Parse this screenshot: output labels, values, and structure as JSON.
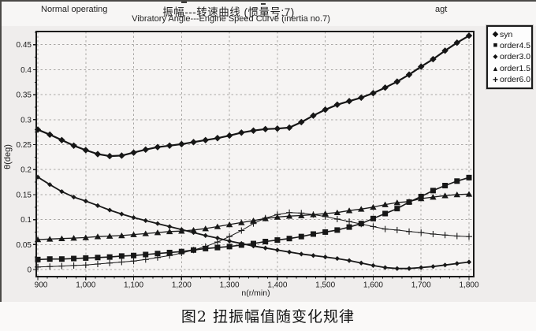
{
  "header": {
    "left_label": "Normal operating",
    "title_cn": "振幅---转速曲线 (惯量号:7)",
    "subtitle_en": "Vibratory Angle---Engine Speed Curve (inertia no.7)",
    "right_label": "agt"
  },
  "caption": "图2 扭振幅值随变化规律",
  "chart_data": {
    "type": "line",
    "title": "振幅---转速曲线 (惯量号:7)",
    "subtitle": "Vibratory Angle---Engine Speed Curve (inertia no.7)",
    "xlabel": "n(r/min)",
    "ylabel": "θ(deg)",
    "xlim": [
      900,
      1810
    ],
    "ylim": [
      -0.015,
      0.477
    ],
    "grid": "dashed",
    "grid_color": "#a9a7a5",
    "axis_color": "#1a1a1a",
    "plot_bg": "#f6f4f3",
    "legend_position": "right",
    "x_ticks": [
      900,
      1000,
      1100,
      1200,
      1300,
      1400,
      1500,
      1600,
      1700,
      1800
    ],
    "x_tick_labels": [
      "900",
      "1,000",
      "1,100",
      "1,200",
      "1,300",
      "1,400",
      "1,500",
      "1,600",
      "1,700",
      "1,800"
    ],
    "y_ticks": [
      0,
      0.05,
      0.1,
      0.15,
      0.2,
      0.25,
      0.3,
      0.35,
      0.4,
      0.45
    ],
    "y_tick_labels": [
      "0",
      "0.05",
      "0.1",
      "0.15",
      "0.2",
      "0.25",
      "0.3",
      "0.35",
      "0.4",
      "0.45"
    ],
    "x": [
      900,
      925,
      950,
      975,
      1000,
      1025,
      1050,
      1075,
      1100,
      1125,
      1150,
      1175,
      1200,
      1225,
      1250,
      1275,
      1300,
      1325,
      1350,
      1375,
      1400,
      1425,
      1450,
      1475,
      1500,
      1525,
      1550,
      1575,
      1600,
      1625,
      1650,
      1675,
      1700,
      1725,
      1750,
      1775,
      1800
    ],
    "series": [
      {
        "name": "syn",
        "legend_glyph": "◆",
        "marker": "diamond",
        "marker_size": 4.2,
        "line_width": 2.2,
        "color": "#161616",
        "values": [
          0.28,
          0.27,
          0.259,
          0.248,
          0.239,
          0.231,
          0.227,
          0.228,
          0.234,
          0.24,
          0.245,
          0.248,
          0.251,
          0.255,
          0.259,
          0.263,
          0.268,
          0.274,
          0.278,
          0.281,
          0.282,
          0.284,
          0.295,
          0.308,
          0.32,
          0.33,
          0.337,
          0.344,
          0.353,
          0.364,
          0.376,
          0.39,
          0.406,
          0.421,
          0.438,
          0.454,
          0.468
        ]
      },
      {
        "name": "order4.5",
        "legend_glyph": "■",
        "marker": "square",
        "marker_size": 3.5,
        "line_width": 1.6,
        "color": "#171717",
        "values": [
          0.02,
          0.021,
          0.021,
          0.022,
          0.023,
          0.024,
          0.025,
          0.027,
          0.028,
          0.03,
          0.032,
          0.034,
          0.036,
          0.039,
          0.042,
          0.044,
          0.046,
          0.049,
          0.052,
          0.056,
          0.059,
          0.062,
          0.066,
          0.071,
          0.075,
          0.079,
          0.085,
          0.092,
          0.102,
          0.112,
          0.122,
          0.135,
          0.146,
          0.158,
          0.168,
          0.177,
          0.184
        ]
      },
      {
        "name": "order3.0",
        "legend_glyph": "◆",
        "marker": "diamond",
        "marker_size": 3.1,
        "line_width": 1.8,
        "color": "#191919",
        "values": [
          0.185,
          0.17,
          0.156,
          0.145,
          0.137,
          0.128,
          0.119,
          0.111,
          0.104,
          0.098,
          0.092,
          0.086,
          0.08,
          0.074,
          0.068,
          0.063,
          0.057,
          0.052,
          0.047,
          0.043,
          0.039,
          0.035,
          0.031,
          0.028,
          0.025,
          0.022,
          0.018,
          0.013,
          0.008,
          0.004,
          0.002,
          0.002,
          0.004,
          0.006,
          0.009,
          0.012,
          0.015
        ]
      },
      {
        "name": "order1.5",
        "legend_glyph": "▲",
        "marker": "triangle",
        "marker_size": 3.9,
        "line_width": 1.3,
        "color": "#181818",
        "values": [
          0.06,
          0.061,
          0.062,
          0.063,
          0.064,
          0.066,
          0.067,
          0.068,
          0.07,
          0.072,
          0.074,
          0.076,
          0.077,
          0.079,
          0.082,
          0.086,
          0.09,
          0.094,
          0.098,
          0.102,
          0.105,
          0.107,
          0.108,
          0.11,
          0.112,
          0.114,
          0.118,
          0.121,
          0.125,
          0.13,
          0.134,
          0.136,
          0.142,
          0.145,
          0.148,
          0.15,
          0.151
        ]
      },
      {
        "name": "order6.0",
        "legend_glyph": "+",
        "marker": "plus",
        "marker_size": 4.0,
        "line_width": 1.0,
        "color": "#1b1b1b",
        "values": [
          0.005,
          0.006,
          0.007,
          0.008,
          0.009,
          0.011,
          0.013,
          0.015,
          0.017,
          0.02,
          0.024,
          0.028,
          0.033,
          0.039,
          0.046,
          0.055,
          0.066,
          0.078,
          0.092,
          0.103,
          0.11,
          0.114,
          0.113,
          0.11,
          0.106,
          0.101,
          0.096,
          0.091,
          0.086,
          0.081,
          0.079,
          0.076,
          0.074,
          0.071,
          0.069,
          0.067,
          0.066
        ]
      }
    ]
  }
}
